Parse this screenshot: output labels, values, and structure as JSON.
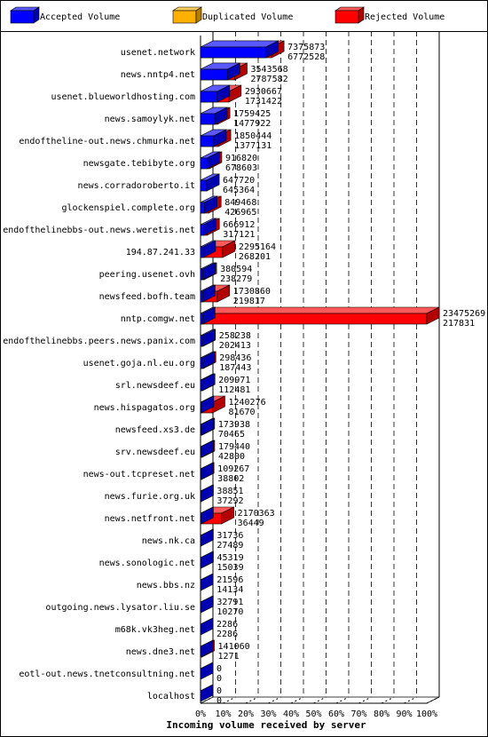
{
  "chart_data": {
    "type": "bar3d",
    "legend": [
      {
        "name": "Accepted Volume",
        "color": "#0000ff"
      },
      {
        "name": "Duplicated Volume",
        "color": "#ffb000"
      },
      {
        "name": "Rejected Volume",
        "color": "#ff0000"
      }
    ],
    "categories": [
      "usenet.network",
      "news.nntp4.net",
      "usenet.blueworldhosting.com",
      "news.samoylyk.net",
      "endoftheline-out.news.chmurka.net",
      "newsgate.tebibyte.org",
      "news.corradoroberto.it",
      "glockenspiel.complete.org",
      "endofthelinebbs-out.news.weretis.net",
      "194.87.241.33",
      "peering.usenet.ovh",
      "newsfeed.bofh.team",
      "nntp.comgw.net",
      "endofthelinebbs.peers.news.panix.com",
      "usenet.goja.nl.eu.org",
      "srl.newsdeef.eu",
      "news.hispagatos.org",
      "newsfeed.xs3.de",
      "srv.newsdeef.eu",
      "news-out.tcpreset.net",
      "news.furie.org.uk",
      "news.netfront.net",
      "news.nk.ca",
      "news.sonologic.net",
      "news.bbs.nz",
      "outgoing.news.lysator.liu.se",
      "m68k.vk3heg.net",
      "news.dne3.net",
      "eotl-out.news.tnetconsultning.net",
      "localhost"
    ],
    "totals": [
      7375873,
      3543568,
      2930667,
      1759425,
      1850444,
      916820,
      647720,
      849468,
      666912,
      2295164,
      380594,
      1730860,
      23475269,
      258238,
      298436,
      209971,
      1240276,
      173938,
      179440,
      109267,
      38851,
      2170363,
      31736,
      45319,
      21596,
      32791,
      2286,
      141060,
      0,
      0
    ],
    "accepted": [
      6772528,
      2787582,
      1731422,
      1477922,
      1377131,
      678603,
      645364,
      426965,
      317121,
      268201,
      238279,
      219817,
      217831,
      202413,
      187443,
      112481,
      81670,
      70465,
      42800,
      38802,
      37292,
      36449,
      27489,
      15039,
      14134,
      10270,
      2286,
      1271,
      0,
      0
    ],
    "xlabel": "Incoming volume received by server",
    "xlim": [
      0,
      23475269
    ],
    "xticks": [
      {
        "value": 0,
        "label": "0%"
      },
      {
        "value": 2347526.9,
        "label": "10%"
      },
      {
        "value": 4695053.8,
        "label": "20%"
      },
      {
        "value": 7042580.7,
        "label": "30%"
      },
      {
        "value": 9390107.6,
        "label": "40%"
      },
      {
        "value": 11737634.5,
        "label": "50%"
      },
      {
        "value": 14085161.4,
        "label": "60%"
      },
      {
        "value": 16432688.3,
        "label": "70%"
      },
      {
        "value": 18780215.2,
        "label": "80%"
      },
      {
        "value": 21127742.1,
        "label": "90%"
      },
      {
        "value": 23475269,
        "label": "100%"
      }
    ],
    "grid": true
  }
}
